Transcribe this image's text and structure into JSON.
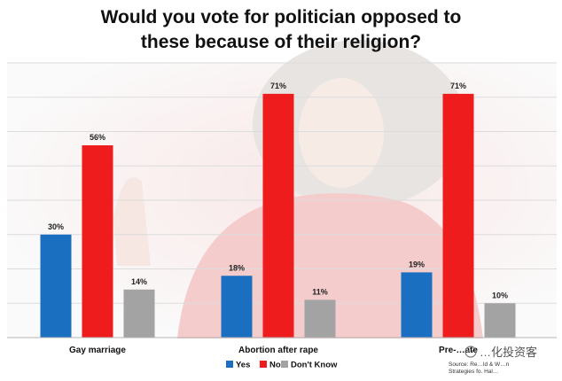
{
  "chart_data": {
    "type": "bar",
    "title": "Would you vote for politician opposed to these because of their religion?",
    "title_lines": [
      "Would you vote for politician opposed to",
      "these because of their religion?"
    ],
    "categories": [
      "Gay marriage",
      "Abortion after rape",
      "Pre-…ate"
    ],
    "series": [
      {
        "name": "Yes",
        "color": "#1a6fc1",
        "values": [
          30,
          18,
          19
        ]
      },
      {
        "name": "No",
        "color": "#ee1c1c",
        "values": [
          56,
          71,
          71
        ]
      },
      {
        "name": "Don't Know",
        "color": "#a3a3a3",
        "values": [
          14,
          11,
          10
        ]
      }
    ],
    "data_labels": [
      [
        "30%",
        "18%",
        "19%"
      ],
      [
        "56%",
        "71%",
        "71%"
      ],
      [
        "14%",
        "11%",
        "10%"
      ]
    ],
    "ylim": [
      0,
      80
    ],
    "grid": true,
    "legend_position": "bottom",
    "source_lines": [
      "Source: Re…ld & W…n",
      "Strategies fo. Hal…"
    ],
    "watermark": "…化投资客"
  }
}
